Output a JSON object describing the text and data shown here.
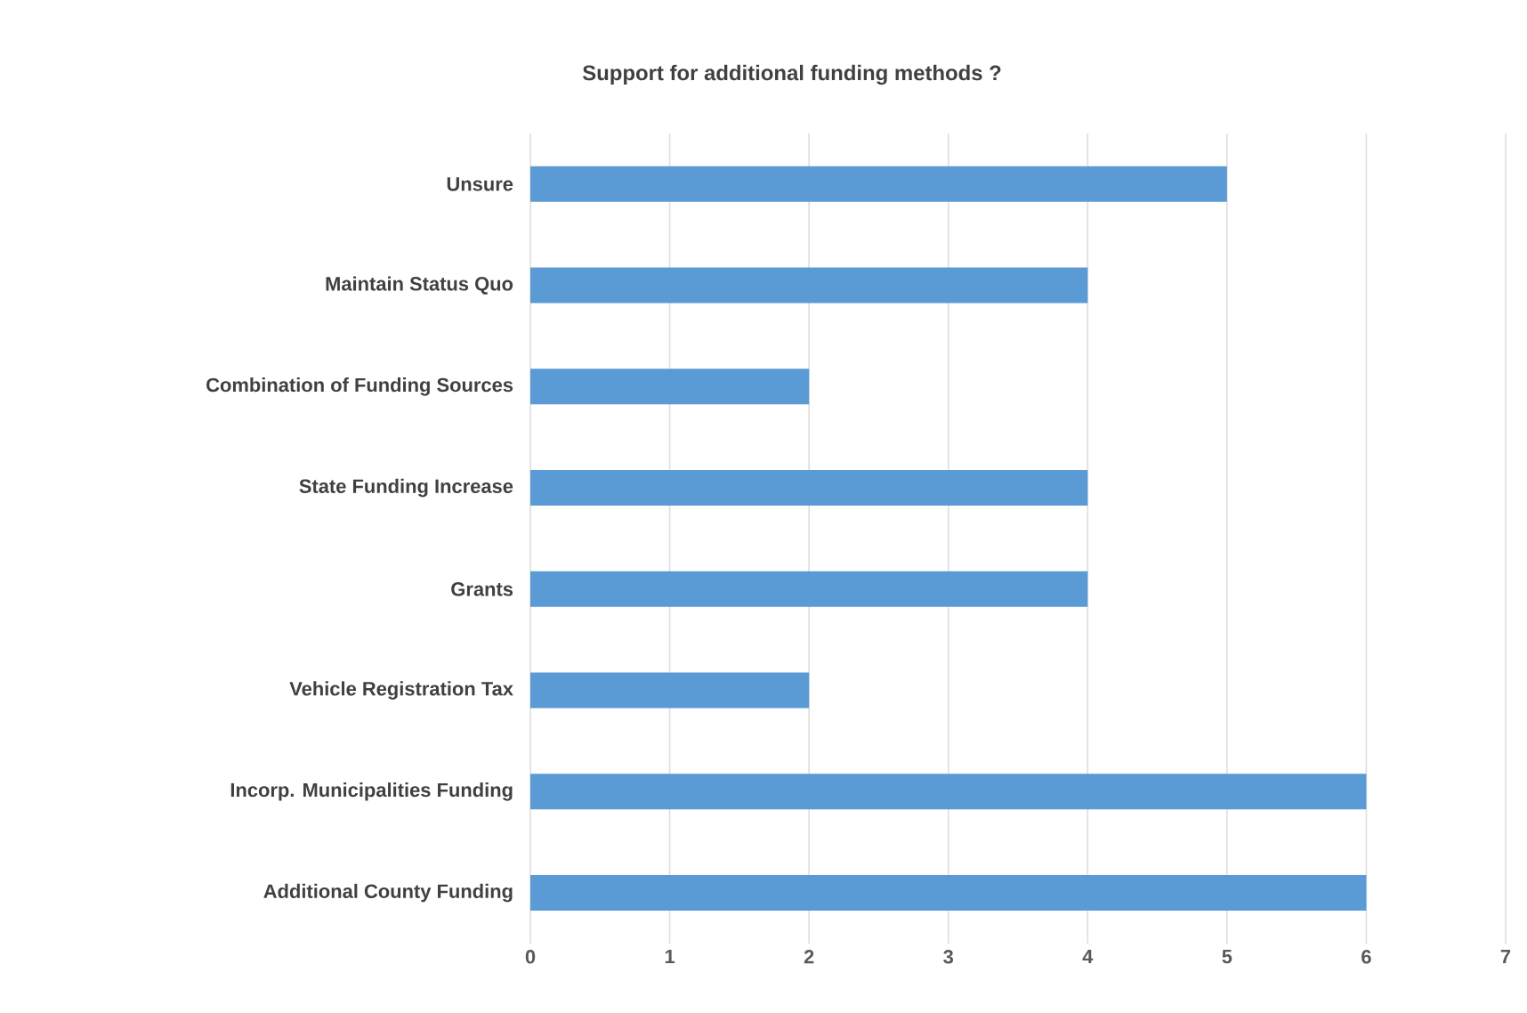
{
  "chart_data": {
    "type": "bar",
    "orientation": "horizontal",
    "title": "Support for additional funding methods ?",
    "categories": [
      "Unsure",
      "Maintain Status Quo",
      "Combination of Funding Sources",
      "State Funding Increase",
      "Grants",
      "Vehicle Registration Tax",
      "Incorp. Municipalities Funding",
      "Additional County Funding"
    ],
    "values": [
      5,
      4,
      2,
      4,
      4,
      2,
      6,
      6
    ],
    "color": "#5b9bd5",
    "xlim": [
      0,
      7
    ],
    "xticks": [
      0,
      1,
      2,
      3,
      4,
      5,
      6,
      7
    ],
    "grid": "x"
  }
}
